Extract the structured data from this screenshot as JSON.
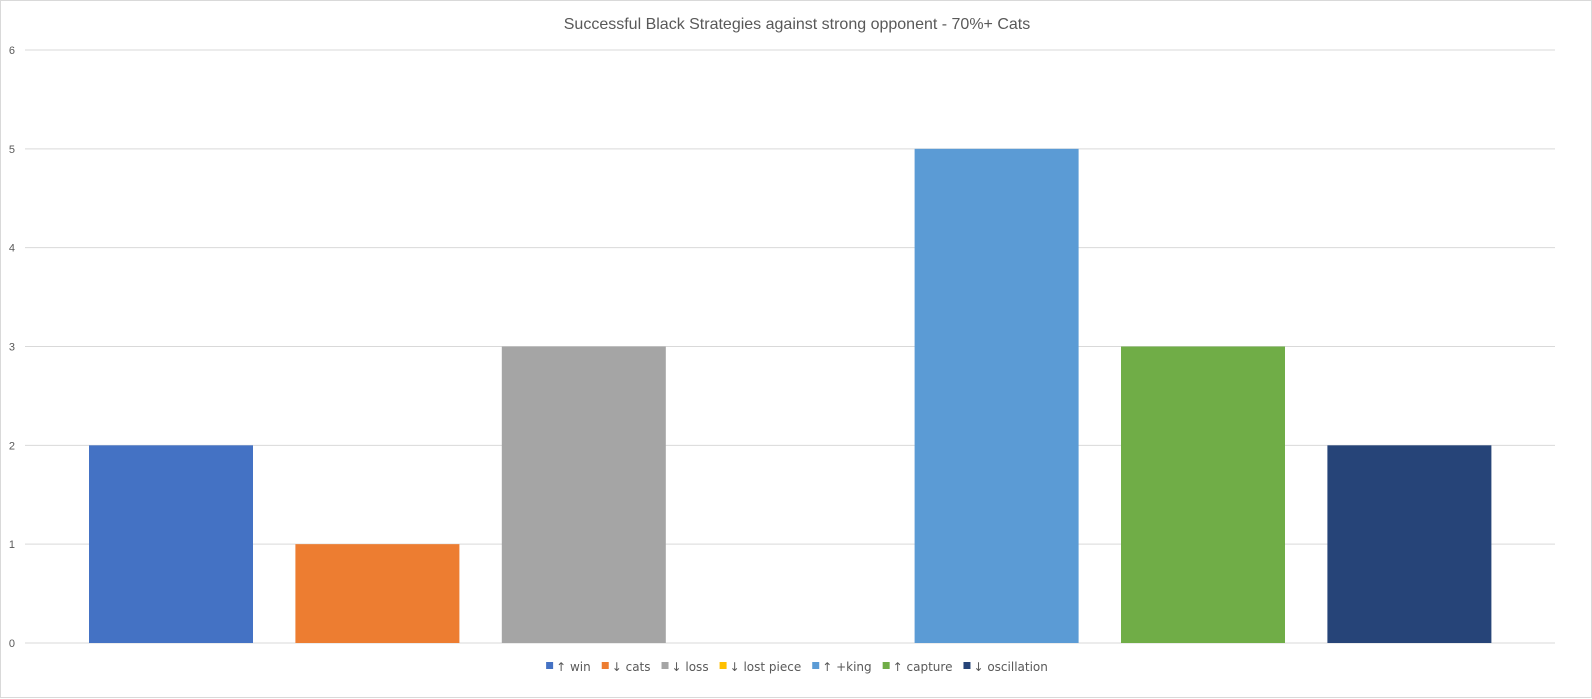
{
  "chart_data": {
    "type": "bar",
    "title": "Successful Black Strategies against strong opponent - 70%+ Cats",
    "xlabel": "",
    "ylabel": "",
    "ylim": [
      0,
      6
    ],
    "yticks": [
      "0",
      "1",
      "2",
      "3",
      "4",
      "5",
      "6"
    ],
    "grid": true,
    "legend_position": "bottom",
    "series": [
      {
        "name": "↑ win",
        "value": 2,
        "color": "#4472C4"
      },
      {
        "name": "↓ cats",
        "value": 1,
        "color": "#ED7D31"
      },
      {
        "name": "↓ loss",
        "value": 3,
        "color": "#A5A5A5"
      },
      {
        "name": "↓ lost piece",
        "value": 0,
        "color": "#FFC000"
      },
      {
        "name": "↑ +king",
        "value": 5,
        "color": "#5B9BD5"
      },
      {
        "name": "↑ capture",
        "value": 3,
        "color": "#70AD47"
      },
      {
        "name": "↓ oscillation",
        "value": 2,
        "color": "#264478"
      }
    ]
  }
}
